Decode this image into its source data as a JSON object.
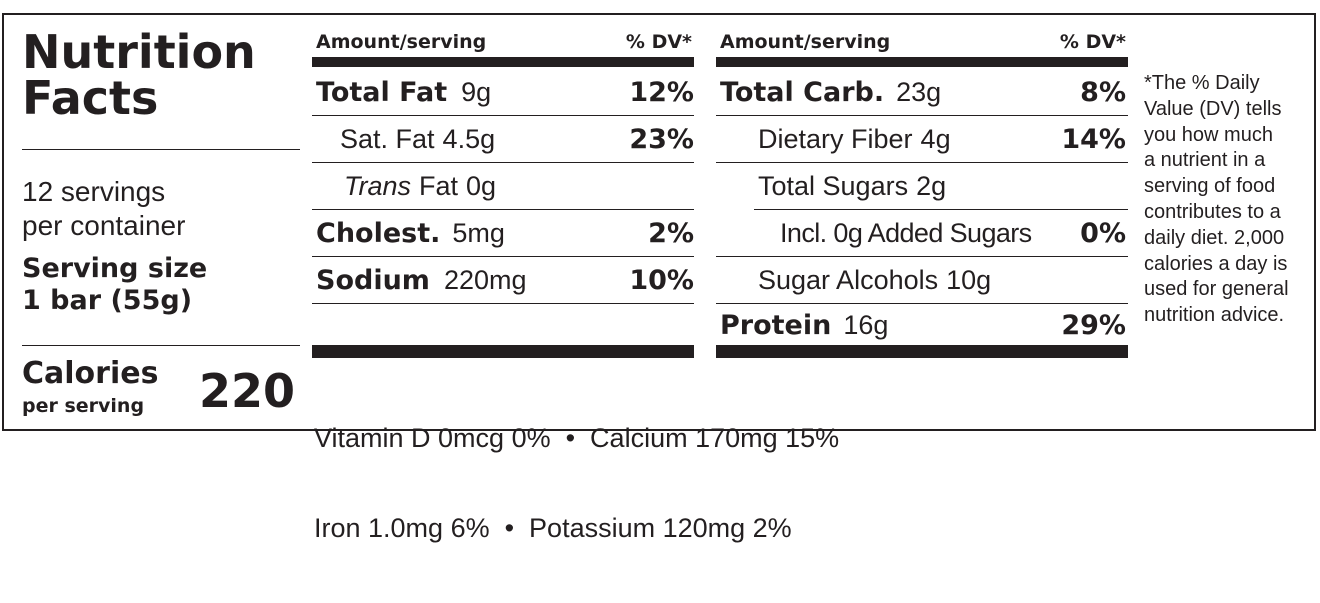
{
  "title": "Nutrition Facts",
  "servings": {
    "line1": "12 servings",
    "line2": "per container"
  },
  "serving_size": {
    "label": "Serving size",
    "value": "1 bar (55g)"
  },
  "calories": {
    "label": "Calories",
    "sub": "per serving",
    "value": "220"
  },
  "header": {
    "amount": "Amount/serving",
    "dv": "% DV*"
  },
  "left_rows": [
    {
      "name": "Total Fat",
      "amount": "9g",
      "dv": "12%"
    },
    {
      "name": "Sat. Fat",
      "amount": "4.5g",
      "dv": "23%"
    },
    {
      "name_italic": "Trans",
      "name": "Fat",
      "amount": "0g",
      "dv": ""
    },
    {
      "name": "Cholest.",
      "amount": "5mg",
      "dv": "2%"
    },
    {
      "name": "Sodium",
      "amount": "220mg",
      "dv": "10%"
    }
  ],
  "right_rows": [
    {
      "name": "Total Carb.",
      "amount": "23g",
      "dv": "8%"
    },
    {
      "name": "Dietary Fiber",
      "amount": "4g",
      "dv": "14%"
    },
    {
      "name": "Total Sugars",
      "amount": "2g",
      "dv": ""
    },
    {
      "name": "Incl. 0g Added Sugars",
      "amount": "",
      "dv": "0%"
    },
    {
      "name": "Sugar Alcohols",
      "amount": "10g",
      "dv": ""
    },
    {
      "name": "Protein",
      "amount": "16g",
      "dv": "29%"
    }
  ],
  "vitamins": {
    "line1": "Vitamin D 0mcg 0%  •  Calcium 170mg 15%",
    "line2": "Iron 1.0mg 6%  •  Potassium 120mg 2%"
  },
  "footnote": [
    "*The % Daily",
    "Value (DV) tells",
    "you how much",
    "a nutrient in a",
    "serving of food",
    "contributes to a",
    "daily diet. 2,000",
    "calories a day is",
    "used for general",
    "nutrition advice."
  ]
}
